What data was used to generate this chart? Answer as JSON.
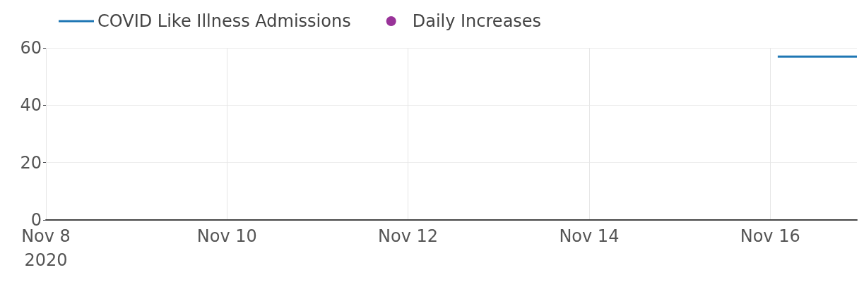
{
  "chart_data": {
    "type": "line",
    "xlim": [
      "2020-11-08",
      "2020-11-16T23:00"
    ],
    "xticks": [
      {
        "value": "2020-11-08",
        "label": "Nov 8\n2020"
      },
      {
        "value": "2020-11-10",
        "label": "Nov 10"
      },
      {
        "value": "2020-11-12",
        "label": "Nov 12"
      },
      {
        "value": "2020-11-14",
        "label": "Nov 14"
      },
      {
        "value": "2020-11-16",
        "label": "Nov 16"
      }
    ],
    "ylim": [
      0,
      60
    ],
    "yticks": [
      0,
      20,
      40,
      60
    ],
    "grid": true,
    "legend": "top left",
    "series": [
      {
        "name": "COVID Like Illness Admissions",
        "color": "#1f77b4",
        "x": [
          "2020-11-16T02:00",
          "2020-11-16T23:00"
        ],
        "values": [
          57,
          57
        ]
      },
      {
        "name": "Daily Increases",
        "type": "scatter",
        "color": "#800080"
      }
    ]
  }
}
